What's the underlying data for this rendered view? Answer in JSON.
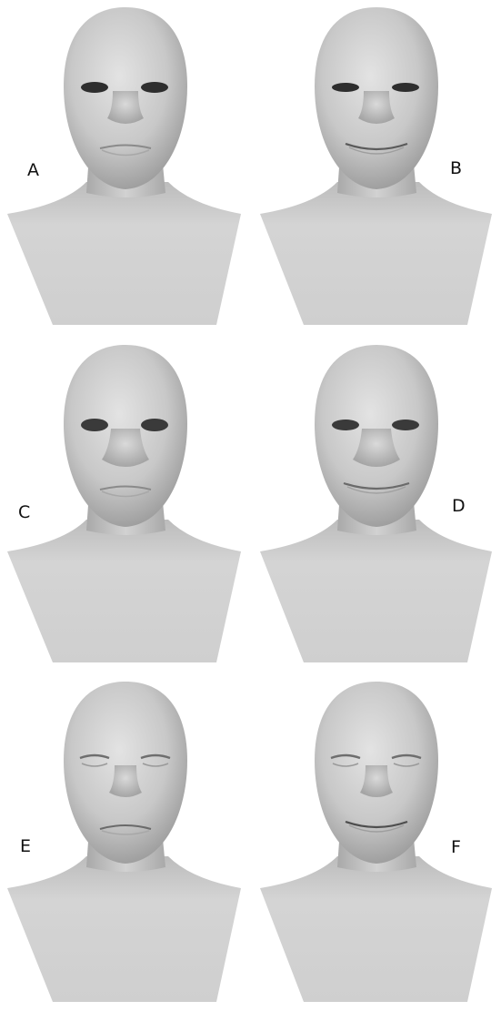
{
  "figure": {
    "background": "#ffffff",
    "skin_light": "#dedede",
    "skin_mid": "#bdbdbd",
    "skin_dark": "#8f8f8f",
    "panels": [
      {
        "label": "A",
        "expression": "neutral"
      },
      {
        "label": "B",
        "expression": "smile"
      },
      {
        "label": "C",
        "expression": "neutral"
      },
      {
        "label": "D",
        "expression": "smile"
      },
      {
        "label": "E",
        "expression": "neutral-eyes-closed"
      },
      {
        "label": "F",
        "expression": "smile-eyes-closed"
      }
    ]
  }
}
